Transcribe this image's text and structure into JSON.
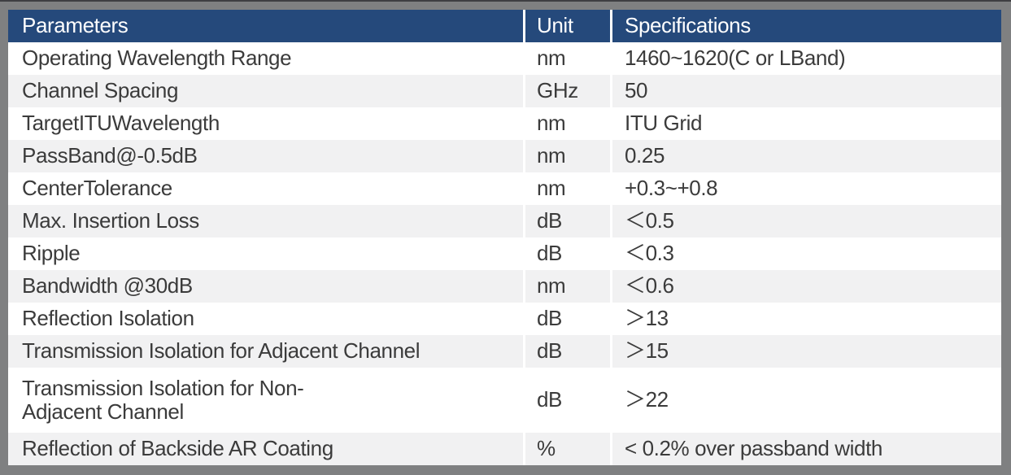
{
  "colors": {
    "frame_bg": "#7F8081",
    "top_line": "#3E3E42",
    "header_bg": "#25497B",
    "header_text": "#FFFFFF",
    "stripe": "#F1F1F2",
    "body_text": "#3B3B3B"
  },
  "table": {
    "header": {
      "columns": [
        "Parameters",
        "Unit",
        "Specifications"
      ]
    },
    "rows": [
      {
        "parameter": "Operating Wavelength Range",
        "unit": "nm",
        "specification": "1460~1620(C or LBand)"
      },
      {
        "parameter": "Channel Spacing",
        "unit": "GHz",
        "specification": "50"
      },
      {
        "parameter": "TargetITUWavelength",
        "unit": "nm",
        "specification": "ITU Grid"
      },
      {
        "parameter": "PassBand@-0.5dB",
        "unit": "nm",
        "specification": "0.25"
      },
      {
        "parameter": "CenterTolerance",
        "unit": "nm",
        "specification": "+0.3~+0.8"
      },
      {
        "parameter": "Max. Insertion Loss",
        "unit": "dB",
        "specification": "＜0.5"
      },
      {
        "parameter": "Ripple",
        "unit": "dB",
        "specification": "＜0.3"
      },
      {
        "parameter": "Bandwidth @30dB",
        "unit": "nm",
        "specification": "＜0.6"
      },
      {
        "parameter": "Reflection Isolation",
        "unit": "dB",
        "specification": "＞13"
      },
      {
        "parameter": "Transmission Isolation for Adjacent Channel",
        "unit": "dB",
        "specification": "＞15"
      },
      {
        "parameter": "Transmission Isolation for Non-\nAdjacent Channel",
        "unit": "dB",
        "specification": "＞22"
      },
      {
        "parameter": "Reflection of Backside AR Coating",
        "unit": "%",
        "specification": "< 0.2% over passband width"
      }
    ]
  }
}
